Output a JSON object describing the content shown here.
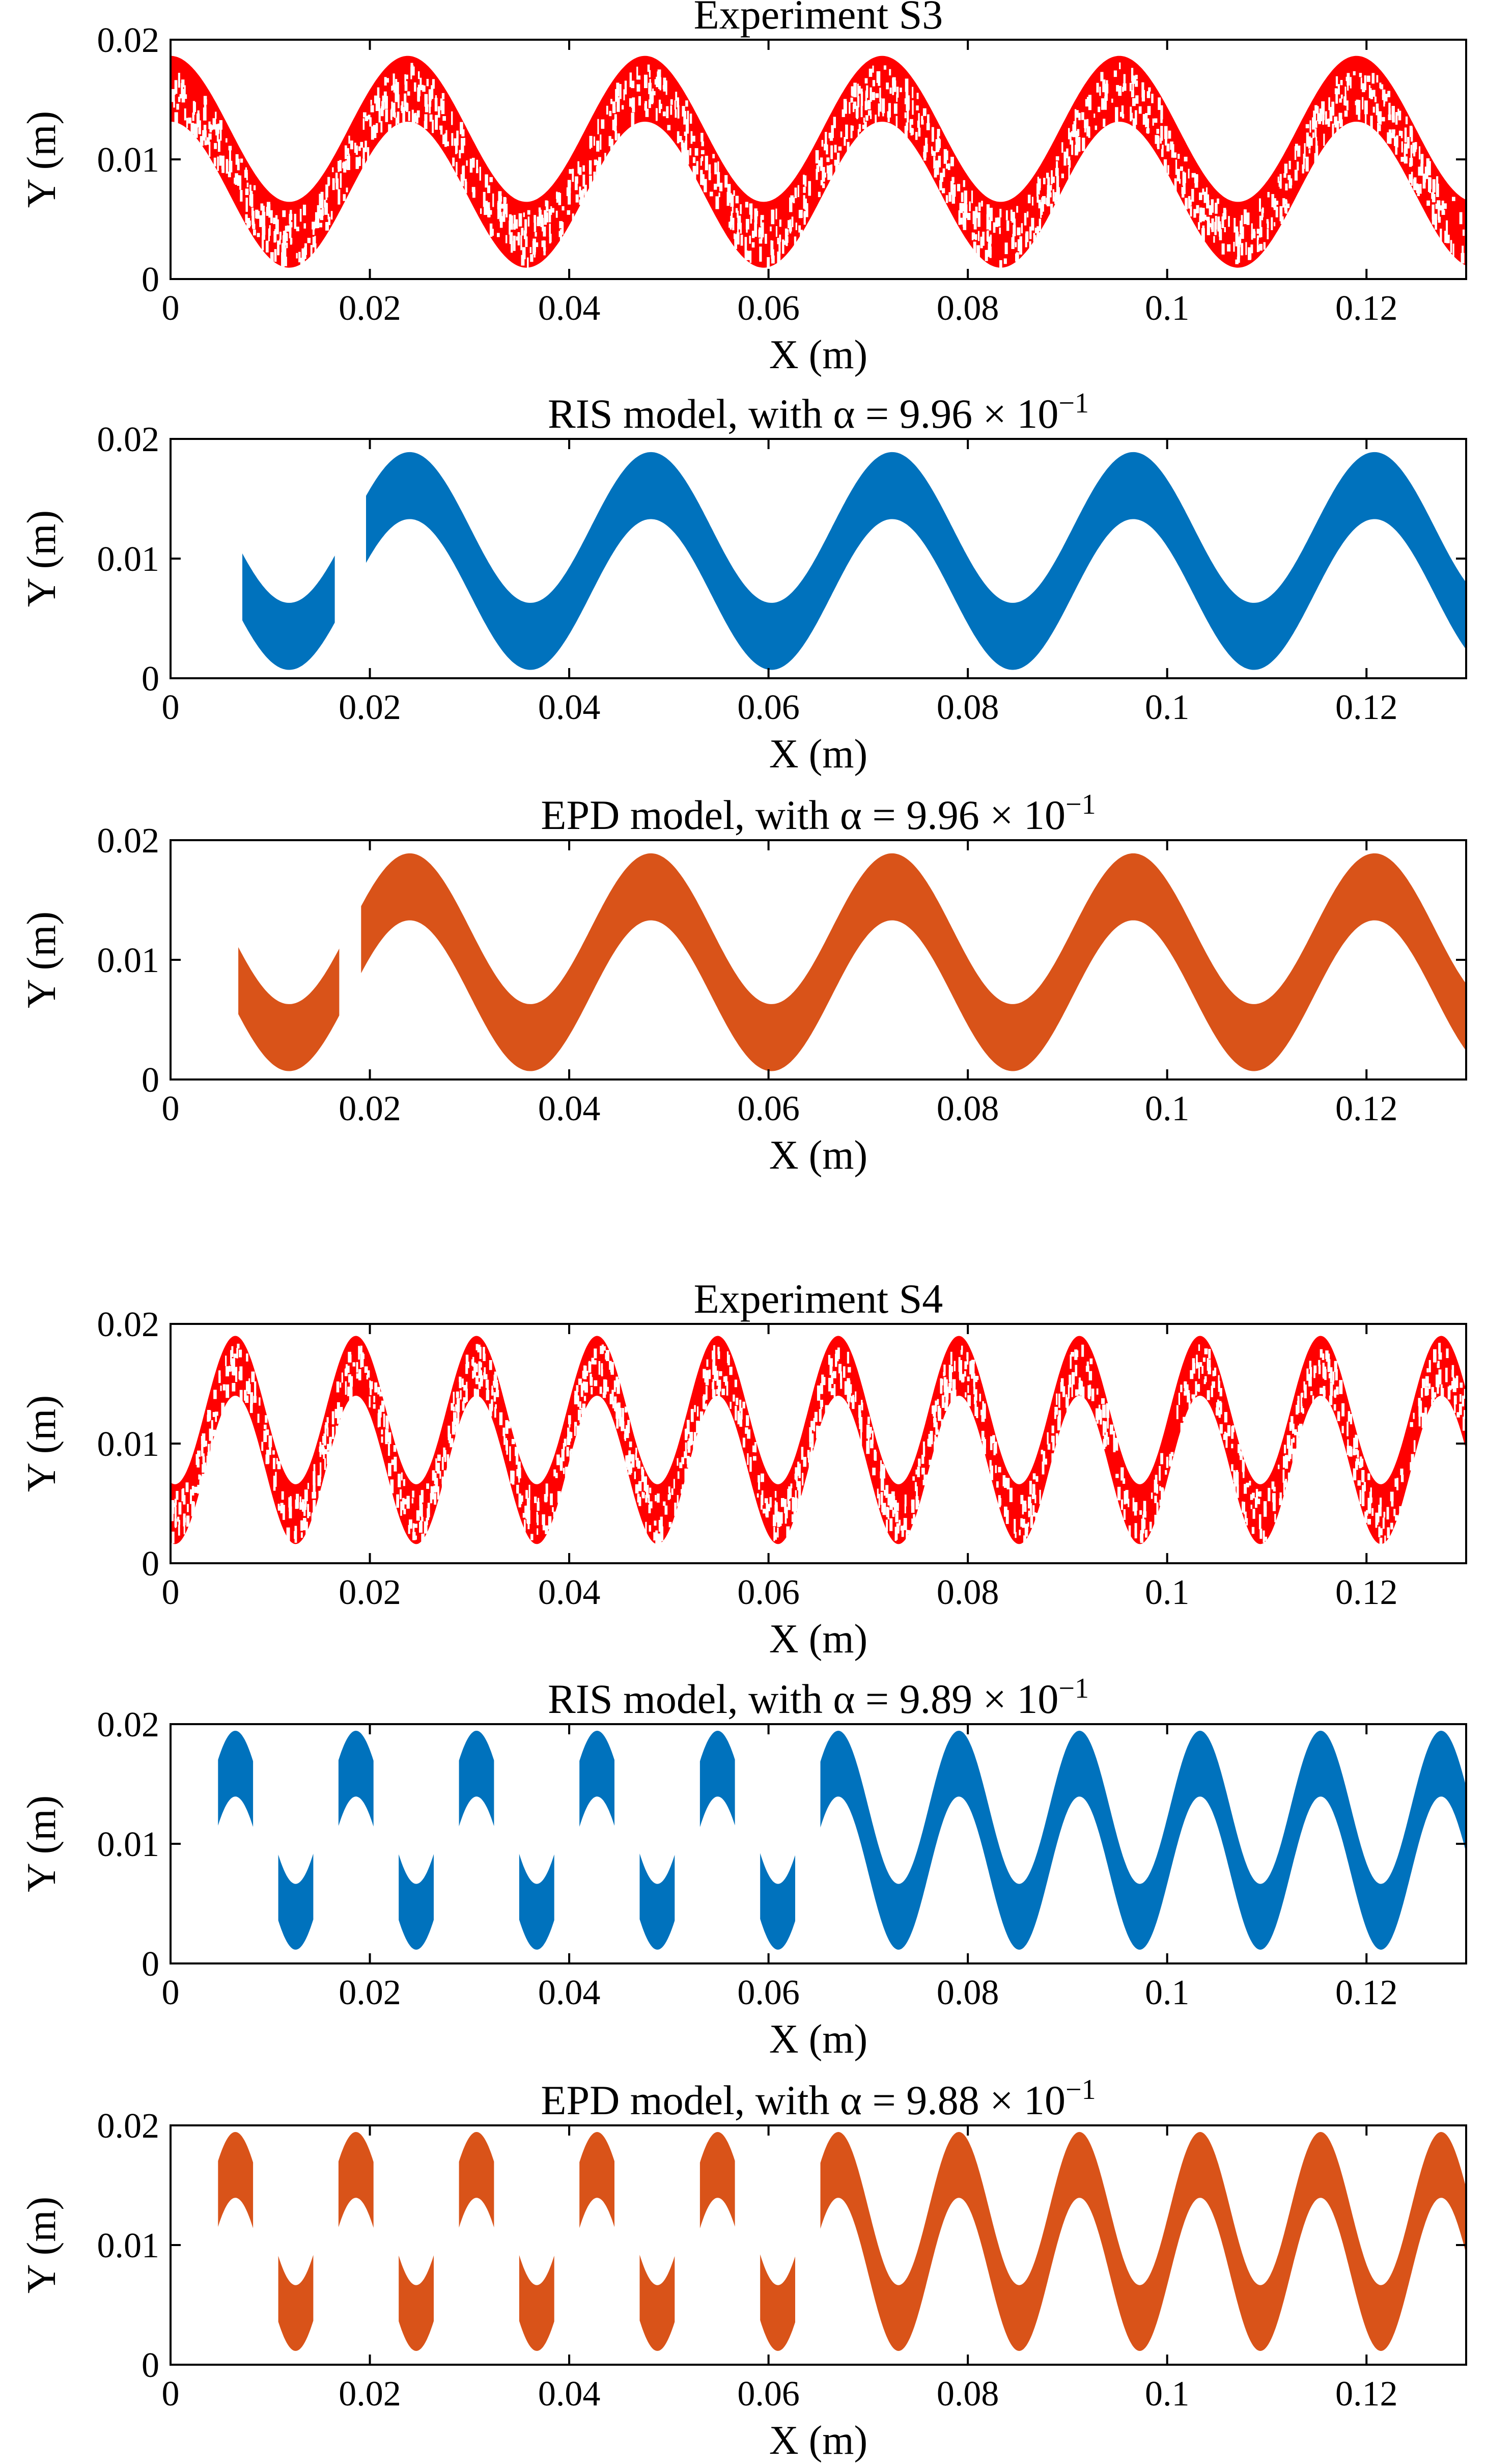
{
  "colors": {
    "experiment": "#ff0000",
    "ris": "#0072bd",
    "epd": "#d95319"
  },
  "chart_data": [
    {
      "type": "scatter",
      "id": "s3-exp",
      "title": "Experiment S3",
      "xlabel": "X (m)",
      "ylabel": "Y (m)",
      "xlim": [
        0,
        0.13
      ],
      "ylim": [
        0,
        0.02
      ],
      "xticks": [
        "0",
        "0.02",
        "0.04",
        "0.06",
        "0.08",
        "0.1",
        "0.12"
      ],
      "yticks": [
        "0",
        "0.01",
        "0.02"
      ],
      "color_key": "experiment",
      "series": [
        {
          "name": "Experiment S3",
          "wavelength": 0.0238,
          "x_start": 0.0,
          "x_end": 0.13,
          "phase_x_at_peak": 0.0,
          "center": 0.0098,
          "amplitude": 0.0061,
          "band_width": 0.0055,
          "sparse": true
        }
      ],
      "gaps": []
    },
    {
      "type": "scatter",
      "id": "s3-ris",
      "title": "RIS model, with α = 9.96 × 10",
      "title_exponent": "−1",
      "xlabel": "X (m)",
      "ylabel": "Y (m)",
      "xlim": [
        0,
        0.13
      ],
      "ylim": [
        0,
        0.02
      ],
      "xticks": [
        "0",
        "0.02",
        "0.04",
        "0.06",
        "0.08",
        "0.1",
        "0.12"
      ],
      "yticks": [
        "0",
        "0.01",
        "0.02"
      ],
      "color_key": "ris",
      "series": [
        {
          "name": "RIS model",
          "wavelength": 0.0242,
          "x_start": 0.0072,
          "x_end": 0.13,
          "phase_x_at_peak": 0.024,
          "center": 0.0098,
          "amplitude": 0.0063,
          "band_width": 0.0056,
          "sparse": false
        }
      ],
      "gaps": [
        [
          0.0165,
          0.0195
        ]
      ]
    },
    {
      "type": "scatter",
      "id": "s3-epd",
      "title": "EPD model, with α = 9.96 × 10",
      "title_exponent": "−1",
      "xlabel": "X (m)",
      "ylabel": "Y (m)",
      "xlim": [
        0,
        0.13
      ],
      "ylim": [
        0,
        0.02
      ],
      "xticks": [
        "0",
        "0.02",
        "0.04",
        "0.06",
        "0.08",
        "0.1",
        "0.12"
      ],
      "yticks": [
        "0",
        "0.01",
        "0.02"
      ],
      "color_key": "epd",
      "series": [
        {
          "name": "EPD model",
          "wavelength": 0.0242,
          "x_start": 0.0068,
          "x_end": 0.13,
          "phase_x_at_peak": 0.024,
          "center": 0.0098,
          "amplitude": 0.0063,
          "band_width": 0.0056,
          "sparse": false
        }
      ],
      "gaps": [
        [
          0.017,
          0.019
        ]
      ]
    },
    {
      "type": "scatter",
      "id": "s4-exp",
      "title": "Experiment S4",
      "xlabel": "X (m)",
      "ylabel": "Y (m)",
      "xlim": [
        0,
        0.13
      ],
      "ylim": [
        0,
        0.02
      ],
      "xticks": [
        "0",
        "0.02",
        "0.04",
        "0.06",
        "0.08",
        "0.1",
        "0.12"
      ],
      "yticks": [
        "0",
        "0.01",
        "0.02"
      ],
      "color_key": "experiment",
      "series": [
        {
          "name": "Experiment S4",
          "wavelength": 0.0121,
          "x_start": 0.0,
          "x_end": 0.13,
          "phase_x_at_peak": 0.0065,
          "center": 0.0103,
          "amplitude": 0.0062,
          "band_width": 0.005,
          "sparse": true
        }
      ],
      "gaps": []
    },
    {
      "type": "scatter",
      "id": "s4-ris",
      "title": "RIS model, with α = 9.89 × 10",
      "title_exponent": "−1",
      "xlabel": "X (m)",
      "ylabel": "Y (m)",
      "xlim": [
        0,
        0.13
      ],
      "ylim": [
        0,
        0.02
      ],
      "xticks": [
        "0",
        "0.02",
        "0.04",
        "0.06",
        "0.08",
        "0.1",
        "0.12"
      ],
      "yticks": [
        "0",
        "0.01",
        "0.02"
      ],
      "color_key": "ris",
      "series": [
        {
          "name": "RIS model",
          "wavelength": 0.0121,
          "x_start": 0.0035,
          "x_end": 0.13,
          "phase_x_at_peak": 0.0065,
          "center": 0.0103,
          "amplitude": 0.0064,
          "band_width": 0.0055,
          "sparse": false,
          "fragment_until": 0.068,
          "fragment_keep": 0.42
        }
      ],
      "gaps": []
    },
    {
      "type": "scatter",
      "id": "s4-epd",
      "title": "EPD model, with α = 9.88 × 10",
      "title_exponent": "−1",
      "xlabel": "X (m)",
      "ylabel": "Y (m)",
      "xlim": [
        0,
        0.13
      ],
      "ylim": [
        0,
        0.02
      ],
      "xticks": [
        "0",
        "0.02",
        "0.04",
        "0.06",
        "0.08",
        "0.1",
        "0.12"
      ],
      "yticks": [
        "0",
        "0.01",
        "0.02"
      ],
      "color_key": "epd",
      "series": [
        {
          "name": "EPD model",
          "wavelength": 0.0121,
          "x_start": 0.0035,
          "x_end": 0.13,
          "phase_x_at_peak": 0.0065,
          "center": 0.0103,
          "amplitude": 0.0064,
          "band_width": 0.0055,
          "sparse": false,
          "fragment_until": 0.068,
          "fragment_keep": 0.42
        }
      ],
      "gaps": []
    }
  ]
}
